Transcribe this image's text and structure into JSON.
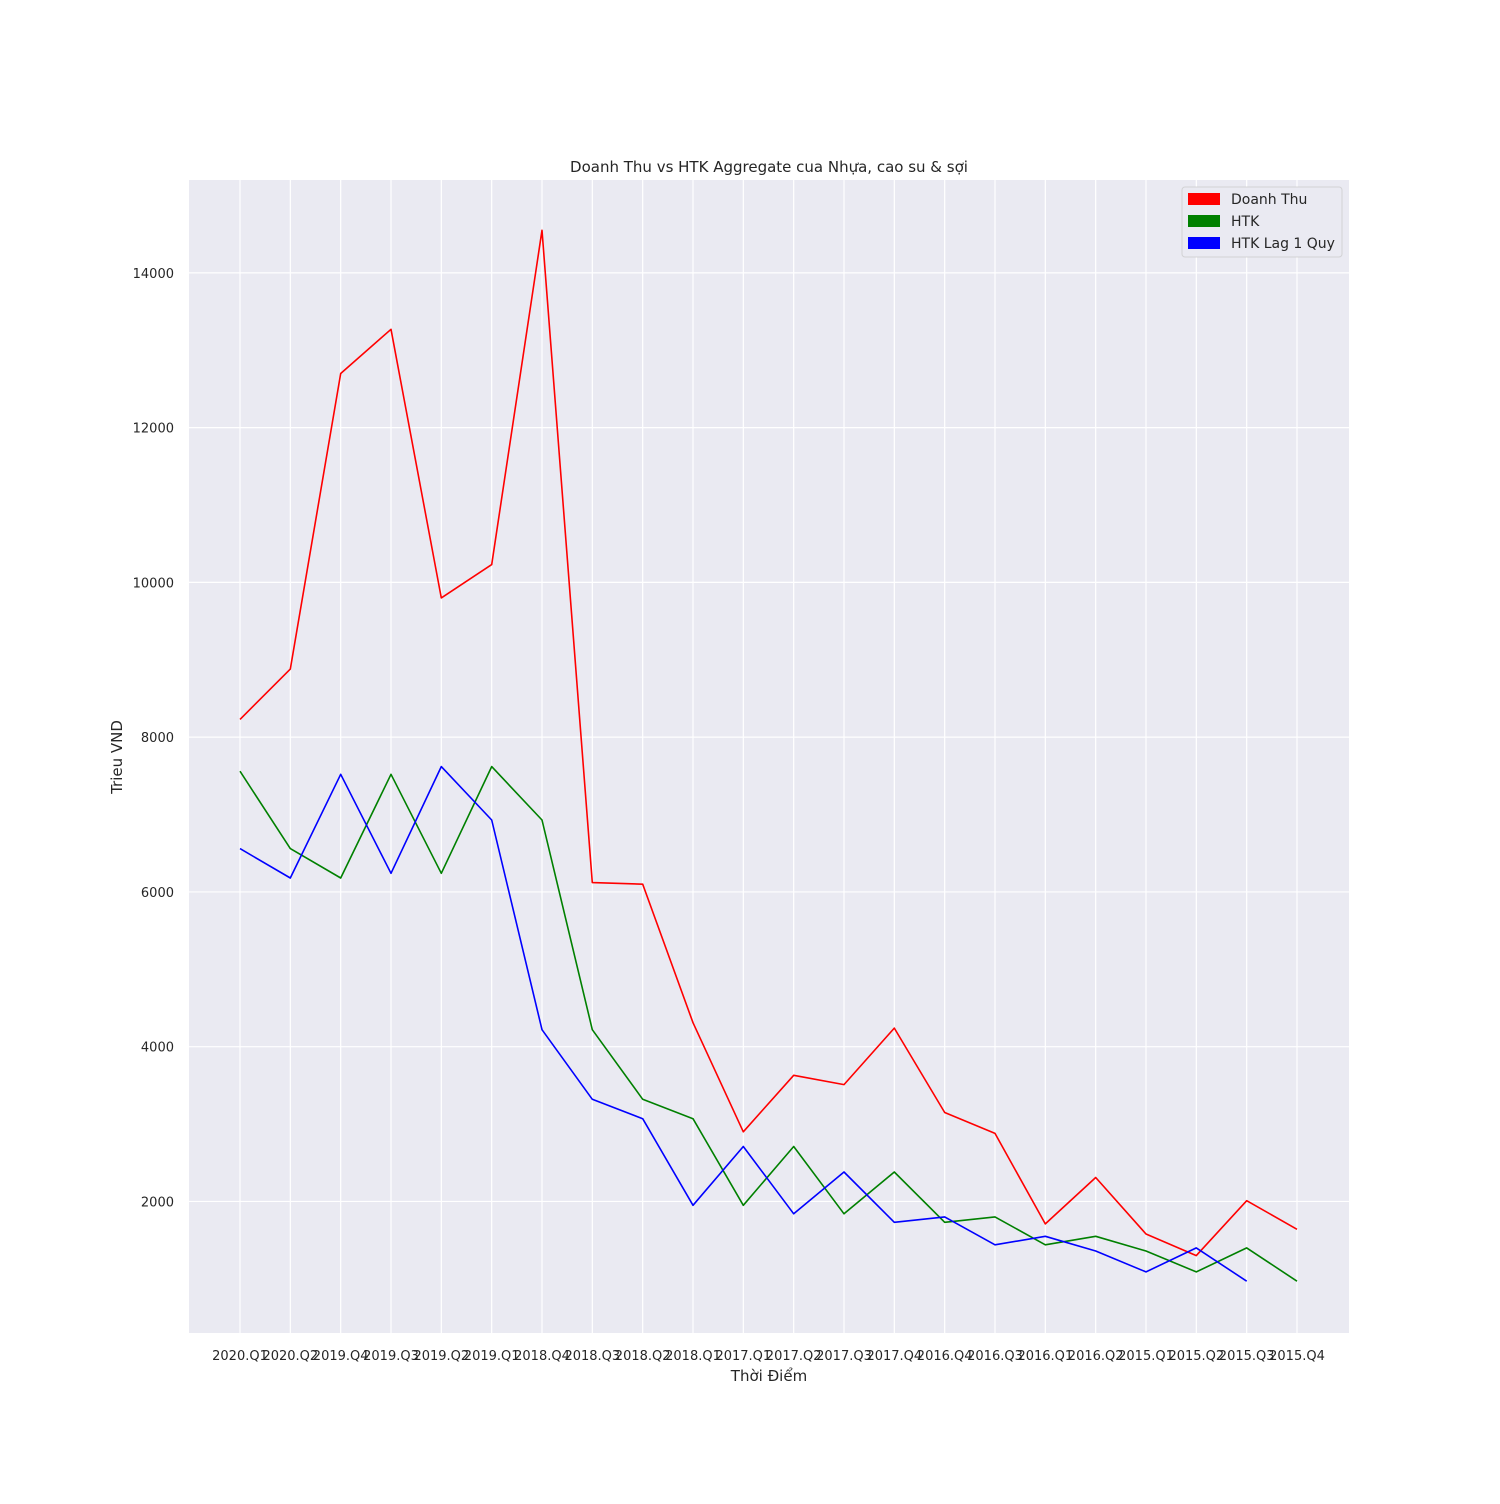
{
  "chart_data": {
    "type": "line",
    "title": "Doanh Thu vs HTK Aggregate cua Nhựa, cao su & sợi",
    "xlabel": "Thời Điểm",
    "ylabel": "Trieu VND",
    "ylim": [
      300,
      15200
    ],
    "yticks": [
      2000,
      4000,
      6000,
      8000,
      10000,
      12000,
      14000
    ],
    "grid": true,
    "legend_position": "top-right",
    "categories": [
      "2020.Q1",
      "2020.Q2",
      "2019.Q4",
      "2019.Q3",
      "2019.Q2",
      "2019.Q1",
      "2018.Q4",
      "2018.Q3",
      "2018.Q2",
      "2018.Q1",
      "2017.Q1",
      "2017.Q2",
      "2017.Q3",
      "2017.Q4",
      "2016.Q4",
      "2016.Q3",
      "2016.Q1",
      "2016.Q2",
      "2015.Q1",
      "2015.Q2",
      "2015.Q3",
      "2015.Q4"
    ],
    "series": [
      {
        "name": "Doanh Thu",
        "color": "#ff0000",
        "values": [
          8230,
          8880,
          12700,
          13270,
          9800,
          10230,
          14550,
          6120,
          6100,
          4310,
          2900,
          3630,
          3510,
          4240,
          3150,
          2880,
          1710,
          2310,
          1580,
          1300,
          2010,
          1640
        ]
      },
      {
        "name": "HTK",
        "color": "#008000",
        "values": [
          7560,
          6560,
          6180,
          7520,
          6240,
          7620,
          6930,
          4220,
          3320,
          3070,
          1950,
          2710,
          1840,
          2380,
          1730,
          1800,
          1440,
          1550,
          1360,
          1090,
          1400,
          970
        ]
      },
      {
        "name": "HTK Lag 1 Quy",
        "color": "#0000ff",
        "values": [
          6560,
          6180,
          7520,
          6240,
          7620,
          6930,
          4220,
          3320,
          3070,
          1950,
          2710,
          1840,
          2380,
          1730,
          1800,
          1440,
          1550,
          1360,
          1090,
          1400,
          970,
          null
        ]
      }
    ]
  }
}
